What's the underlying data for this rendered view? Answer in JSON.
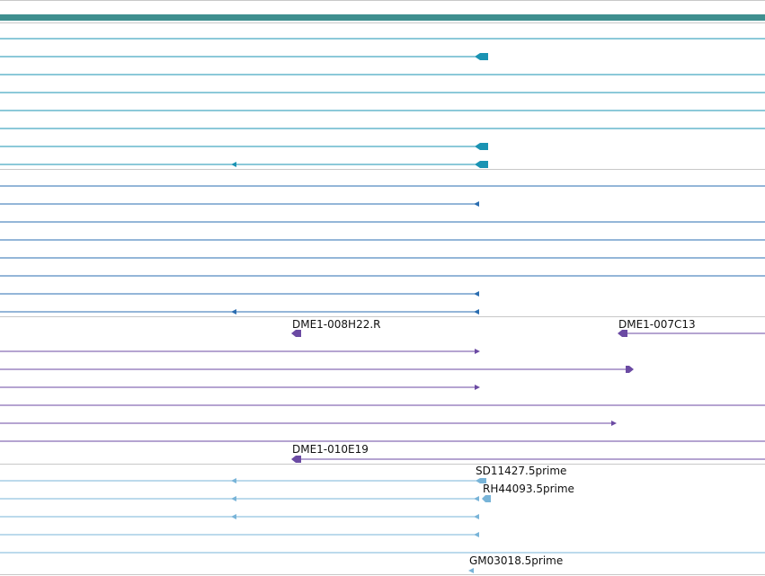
{
  "view": {
    "top_track": {
      "color": "#3f8f8f"
    }
  },
  "groups": [
    {
      "name": "cyan-group",
      "color": "#1a93b3",
      "rows": [
        {
          "features": []
        },
        {
          "features": [
            {
              "type": "block",
              "dir": "left"
            }
          ]
        },
        {
          "features": []
        },
        {
          "features": []
        },
        {
          "features": []
        },
        {
          "features": [
            {
              "type": "block",
              "dir": "left"
            }
          ]
        },
        {
          "features": [
            {
              "type": "arrow",
              "dir": "left",
              "pos": "mid"
            },
            {
              "type": "block",
              "dir": "left"
            }
          ]
        }
      ]
    },
    {
      "name": "blue-group",
      "color": "#2a6db0",
      "rows": [
        {
          "features": []
        },
        {
          "features": [
            {
              "type": "arrow",
              "dir": "left"
            }
          ]
        },
        {
          "features": []
        },
        {
          "features": []
        },
        {
          "features": []
        },
        {
          "features": []
        },
        {
          "features": [
            {
              "type": "arrow",
              "dir": "left"
            }
          ]
        },
        {
          "features": [
            {
              "type": "arrow",
              "dir": "left",
              "pos": "mid"
            },
            {
              "type": "arrow",
              "dir": "left"
            }
          ]
        }
      ]
    },
    {
      "name": "purple-group",
      "color": "#6b4aa3",
      "rows": [
        {
          "labels": [
            "DME1-008H22.R",
            "DME1-007C13"
          ]
        },
        {
          "features": [
            {
              "type": "arrow",
              "dir": "right"
            }
          ]
        },
        {
          "features": [
            {
              "type": "block",
              "dir": "right"
            }
          ]
        },
        {
          "features": [
            {
              "type": "arrow",
              "dir": "right"
            }
          ]
        },
        {
          "features": []
        },
        {
          "features": [
            {
              "type": "arrow",
              "dir": "right"
            }
          ]
        },
        {
          "features": []
        },
        {
          "labels": [
            "DME1-010E19"
          ]
        }
      ]
    },
    {
      "name": "light-blue-group",
      "color": "#78b4d8",
      "rows": [
        {
          "labels": [
            "SD11427.5prime"
          ]
        },
        {
          "labels": [
            "RH44093.5prime"
          ]
        },
        {
          "features": [
            {
              "type": "arrow",
              "dir": "left",
              "pos": "mid"
            },
            {
              "type": "arrow",
              "dir": "left"
            }
          ]
        },
        {
          "features": [
            {
              "type": "arrow",
              "dir": "left"
            }
          ]
        },
        {
          "features": []
        },
        {
          "labels": [
            "GM03018.5prime"
          ]
        }
      ]
    }
  ]
}
